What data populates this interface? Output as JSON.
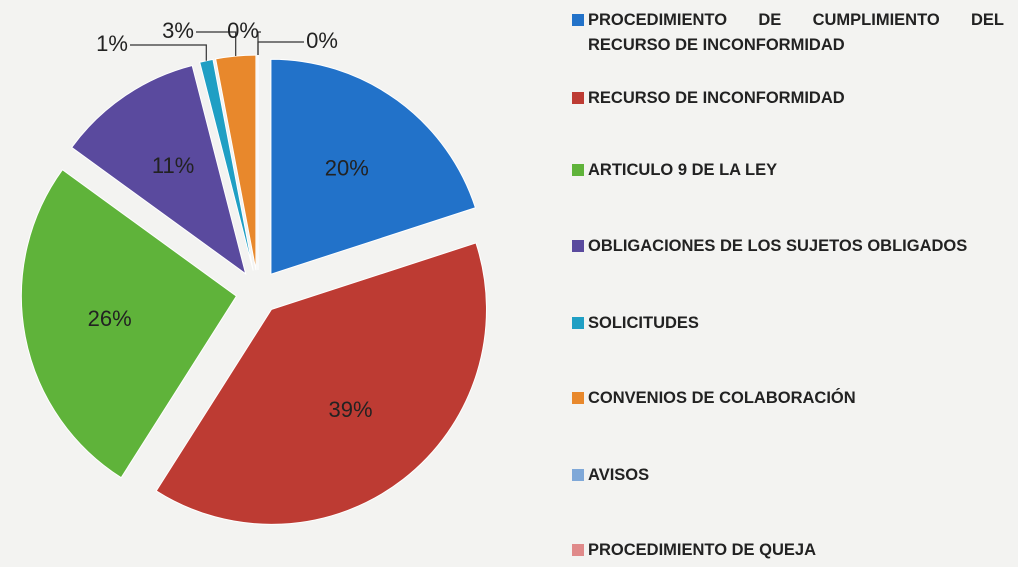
{
  "chart_data": {
    "type": "pie",
    "categories": [
      "PROCEDIMIENTO DE CUMPLIMIENTO DEL RECURSO DE INCONFORMIDAD",
      "RECURSO DE INCONFORMIDAD",
      "ARTICULO 9 DE LA LEY",
      "OBLIGACIONES DE LOS SUJETOS OBLIGADOS",
      "SOLICITUDES",
      "CONVENIOS DE COLABORACIÓN",
      "AVISOS",
      "PROCEDIMIENTO DE QUEJA"
    ],
    "values": [
      20,
      39,
      26,
      11,
      1,
      3,
      0,
      0
    ],
    "value_labels": [
      "20%",
      "39%",
      "26%",
      "11%",
      "1%",
      "3%",
      "0%",
      "0%"
    ],
    "colors": [
      "#2272c9",
      "#bd3b33",
      "#5fb33a",
      "#5a4a9e",
      "#1f9fc4",
      "#e8882c",
      "#7fa8d8",
      "#e08a8a"
    ],
    "legend": "right"
  }
}
